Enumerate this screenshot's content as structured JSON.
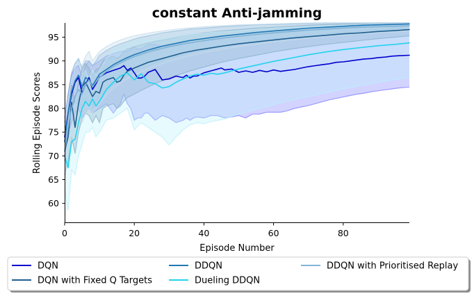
{
  "chart_data": {
    "type": "line",
    "title": "constant Anti-jamming",
    "xlabel": "Episode Number",
    "ylabel": "Rolling Episode Scores",
    "xlim": [
      0,
      99
    ],
    "ylim": [
      56,
      98
    ],
    "xticks": [
      0,
      20,
      40,
      60,
      80
    ],
    "yticks": [
      60,
      65,
      70,
      75,
      80,
      85,
      90,
      95
    ],
    "grid": false,
    "legend_position": "below",
    "legend_columns": 3,
    "series": [
      {
        "name": "DQN",
        "color": "#0000cc",
        "band_color": "#8080ff",
        "x": [
          0,
          1,
          2,
          3,
          4,
          5,
          6,
          7,
          8,
          9,
          10,
          12,
          14,
          16,
          17,
          18,
          19,
          20,
          21,
          22,
          23,
          24,
          26,
          28,
          30,
          32,
          34,
          35,
          36,
          37,
          38,
          40,
          42,
          44,
          45,
          46,
          48,
          50,
          52,
          54,
          56,
          58,
          60,
          62,
          64,
          66,
          68,
          70,
          72,
          74,
          76,
          78,
          80,
          82,
          84,
          86,
          88,
          90,
          92,
          94,
          96,
          99
        ],
        "values": [
          74,
          79,
          83,
          85.5,
          86.5,
          83.2,
          85,
          86.5,
          84,
          85.2,
          86.6,
          87.5,
          88,
          88.5,
          89,
          88,
          88.5,
          87.5,
          86.4,
          86.4,
          86.8,
          87.6,
          88.2,
          86,
          86.2,
          86.8,
          86.5,
          87,
          86.4,
          86.8,
          86.8,
          87.5,
          87.9,
          88.3,
          88.5,
          88.1,
          88.3,
          87.6,
          87.9,
          87.6,
          88,
          87.7,
          88.1,
          87.8,
          88,
          88.2,
          88.5,
          88.8,
          89,
          89.2,
          89.4,
          89.7,
          89.8,
          90,
          90.2,
          90.4,
          90.5,
          90.7,
          90.8,
          91,
          91.1,
          91.2
        ],
        "lower": [
          70,
          75,
          77,
          79,
          80,
          78,
          79,
          80,
          79,
          79.5,
          80,
          81,
          79,
          81,
          83,
          81,
          80,
          77.5,
          78,
          78,
          79,
          79,
          77.5,
          78.5,
          78,
          77,
          77.5,
          78,
          77.5,
          78,
          78.2,
          78,
          78.5,
          78.5,
          78.2,
          78,
          78.2,
          78.5,
          78,
          78.8,
          78.8,
          79.2,
          79.2,
          79.2,
          79.5,
          80,
          80.3,
          80.6,
          81,
          81.4,
          81.8,
          82.1,
          82.4,
          82.7,
          83,
          83.2,
          83.5,
          83.7,
          83.9,
          84.1,
          84.3,
          84.5
        ],
        "upper": [
          78,
          83,
          87,
          88.5,
          89,
          86.5,
          89,
          90,
          89,
          89.5,
          90,
          91,
          91.5,
          92,
          92,
          92,
          92.5,
          93,
          92.5,
          92.5,
          93,
          93.5,
          93.5,
          93,
          93.2,
          93.5,
          93.7,
          93.8,
          93.9,
          94,
          94,
          94.2,
          94.4,
          94.5,
          94.6,
          94.8,
          95,
          95.1,
          95.3,
          95.5,
          95.7,
          95.8,
          96,
          96.1,
          96.3,
          96.4,
          96.5,
          96.6,
          96.7,
          96.8,
          96.9,
          97,
          97.1,
          97.2,
          97.3,
          97.4,
          97.5,
          97.5,
          97.6,
          97.6,
          97.7,
          97.8
        ]
      },
      {
        "name": "DQN with Fixed Q Targets",
        "color": "#1f5f8f",
        "band_color": "#6f8faf",
        "x": [
          0,
          1,
          2,
          3,
          4,
          5,
          6,
          7,
          8,
          9,
          10,
          11,
          12,
          14,
          15,
          16,
          17,
          18,
          20,
          22,
          24,
          26,
          28,
          30,
          32,
          34,
          36,
          38,
          40,
          45,
          50,
          55,
          60,
          65,
          70,
          75,
          80,
          85,
          90,
          95,
          99
        ],
        "values": [
          71,
          74,
          81.3,
          76,
          81,
          84.5,
          85.5,
          84,
          82.5,
          83.6,
          83.2,
          85.5,
          86,
          86.5,
          85.5,
          85.8,
          87,
          87.8,
          88.5,
          89.1,
          89.7,
          90.1,
          90.5,
          90.9,
          91.3,
          91.7,
          92,
          92.3,
          92.5,
          93.1,
          93.6,
          94,
          94.4,
          94.8,
          95.1,
          95.4,
          95.7,
          95.9,
          96.2,
          96.4,
          96.6
        ],
        "lower": [
          66,
          69,
          74,
          70.5,
          75,
          78,
          79,
          78.5,
          77,
          78.5,
          77,
          80,
          80.5,
          81,
          80,
          80.5,
          81.5,
          82.3,
          83,
          83.8,
          84.5,
          85.2,
          85.8,
          86.4,
          86.9,
          87.4,
          87.9,
          88.3,
          88.7,
          89.7,
          90.5,
          91.2,
          91.9,
          92.5,
          93,
          93.5,
          93.9,
          94.3,
          94.7,
          95,
          95.3
        ],
        "upper": [
          76,
          79,
          85,
          81,
          85.5,
          88.5,
          89.5,
          88.5,
          87,
          88.2,
          88.5,
          90,
          90.5,
          91,
          90.5,
          91,
          92,
          92.5,
          93,
          93.4,
          93.8,
          94.1,
          94.4,
          94.7,
          95,
          95.3,
          95.5,
          95.7,
          95.9,
          96.3,
          96.6,
          96.9,
          97.1,
          97.3,
          97.5,
          97.7,
          97.8,
          97.9,
          98,
          98,
          98
        ]
      },
      {
        "name": "DDQN",
        "color": "#1f77b4",
        "band_color": "#7fb2d8",
        "x": [
          0,
          1,
          2,
          3,
          4,
          5,
          6,
          7,
          8,
          9,
          10,
          12,
          14,
          16,
          18,
          20,
          22,
          24,
          26,
          28,
          30,
          32,
          34,
          36,
          38,
          40,
          45,
          50,
          55,
          60,
          65,
          70,
          75,
          80,
          85,
          90,
          95,
          99
        ],
        "values": [
          73,
          79,
          83.5,
          85.8,
          87,
          84.5,
          86.5,
          86,
          84.8,
          86,
          87.2,
          88.2,
          89.2,
          90,
          90.7,
          91.3,
          91.8,
          92.3,
          92.7,
          93.1,
          93.4,
          93.7,
          94,
          94.3,
          94.5,
          94.7,
          95.2,
          95.6,
          96,
          96.3,
          96.6,
          96.9,
          97.1,
          97.3,
          97.5,
          97.6,
          97.7,
          97.8
        ],
        "lower": [
          69,
          75,
          79,
          81,
          82,
          80,
          82,
          81.5,
          80,
          81.5,
          82.5,
          83.8,
          85,
          86,
          86.8,
          87.6,
          88.3,
          88.9,
          89.5,
          90,
          90.5,
          90.9,
          91.3,
          91.7,
          92,
          92.3,
          93,
          93.6,
          94.1,
          94.6,
          95,
          95.4,
          95.7,
          96,
          96.3,
          96.5,
          96.7,
          96.9
        ],
        "upper": [
          77,
          83,
          87.5,
          89.5,
          90.5,
          88.5,
          90,
          90,
          89,
          90,
          91.2,
          92.2,
          93,
          93.6,
          94.1,
          94.6,
          95,
          95.3,
          95.6,
          95.9,
          96.1,
          96.3,
          96.5,
          96.7,
          96.8,
          96.9,
          97.2,
          97.4,
          97.6,
          97.7,
          97.8,
          97.9,
          98,
          98,
          98,
          98,
          98,
          98
        ]
      },
      {
        "name": "Dueling DDQN",
        "color": "#22d3ee",
        "band_color": "#b9f0fa",
        "x": [
          0,
          1,
          2,
          3,
          4,
          5,
          6,
          7,
          8,
          9,
          10,
          12,
          14,
          16,
          18,
          20,
          22,
          24,
          26,
          28,
          30,
          32,
          34,
          36,
          38,
          40,
          42,
          44,
          46,
          48,
          50,
          55,
          60,
          65,
          70,
          75,
          80,
          85,
          90,
          95,
          99
        ],
        "values": [
          70,
          67.5,
          73,
          73.5,
          77,
          80,
          81.5,
          80.5,
          82,
          80.5,
          81.5,
          84,
          85.5,
          86.8,
          87.5,
          86,
          87.3,
          85.5,
          85.2,
          84.3,
          84.6,
          85.5,
          86.2,
          86.8,
          87.2,
          87,
          87.4,
          87.2,
          87.5,
          87.9,
          88.3,
          89.1,
          89.9,
          90.6,
          91.3,
          91.9,
          92.4,
          92.8,
          93.2,
          93.5,
          93.8
        ],
        "lower": [
          63,
          58.5,
          67,
          66,
          70,
          72.5,
          75,
          75,
          76,
          74,
          75,
          77.5,
          78,
          79,
          80,
          75.5,
          77,
          76,
          75,
          74,
          72.3,
          74,
          75.5,
          76.5,
          77,
          76.8,
          77.2,
          77.5,
          77.8,
          78.3,
          78.8,
          79.8,
          80.8,
          81.7,
          82.5,
          83.3,
          84.1,
          84.8,
          85.5,
          86.1,
          86.5
        ],
        "upper": [
          77,
          76,
          79,
          81,
          84,
          87,
          88,
          86,
          88,
          87,
          88,
          90.5,
          92,
          93,
          93.5,
          94,
          94.5,
          94.2,
          94.5,
          94.5,
          94.8,
          95.1,
          95.3,
          95.5,
          95.7,
          95.8,
          96,
          96.1,
          96.2,
          96.3,
          96.4,
          96.7,
          96.9,
          97.1,
          97.3,
          97.4,
          97.5,
          97.6,
          97.7,
          97.7,
          97.8
        ]
      },
      {
        "name": "DDQN with Prioritised Replay",
        "color": "#7fb3d5",
        "band_color": "#c4dbea",
        "x": [
          0,
          1,
          2,
          3,
          4,
          5,
          6,
          7,
          8,
          9,
          10,
          12,
          14,
          16,
          18,
          20,
          25,
          30,
          35,
          40,
          45,
          50,
          55,
          60,
          65,
          70,
          75,
          80,
          85,
          90,
          95,
          99
        ],
        "values": [
          71,
          76,
          80,
          82.5,
          84,
          83,
          85,
          86,
          84.5,
          85.5,
          86.5,
          87.8,
          88.8,
          89.6,
          90.3,
          90.9,
          92.1,
          93,
          93.7,
          94.3,
          94.8,
          95.2,
          95.6,
          95.9,
          96.2,
          96.5,
          96.7,
          96.9,
          97.1,
          97.2,
          97.3,
          97.4
        ],
        "lower": [
          65,
          70,
          74,
          76.5,
          78,
          77,
          79,
          80,
          79,
          80,
          81,
          82.8,
          84.2,
          85.3,
          86.2,
          87,
          88.6,
          89.9,
          90.9,
          91.7,
          92.4,
          93,
          93.5,
          94,
          94.4,
          94.8,
          95.1,
          95.4,
          95.7,
          95.9,
          96.1,
          96.3
        ],
        "upper": [
          77,
          82,
          86,
          88.5,
          90,
          89,
          91,
          92,
          90,
          91,
          92,
          93,
          93.8,
          94.4,
          94.9,
          95.3,
          96,
          96.5,
          96.9,
          97.2,
          97.4,
          97.6,
          97.7,
          97.8,
          97.9,
          98,
          98,
          98,
          98,
          98,
          98,
          98
        ]
      }
    ]
  }
}
